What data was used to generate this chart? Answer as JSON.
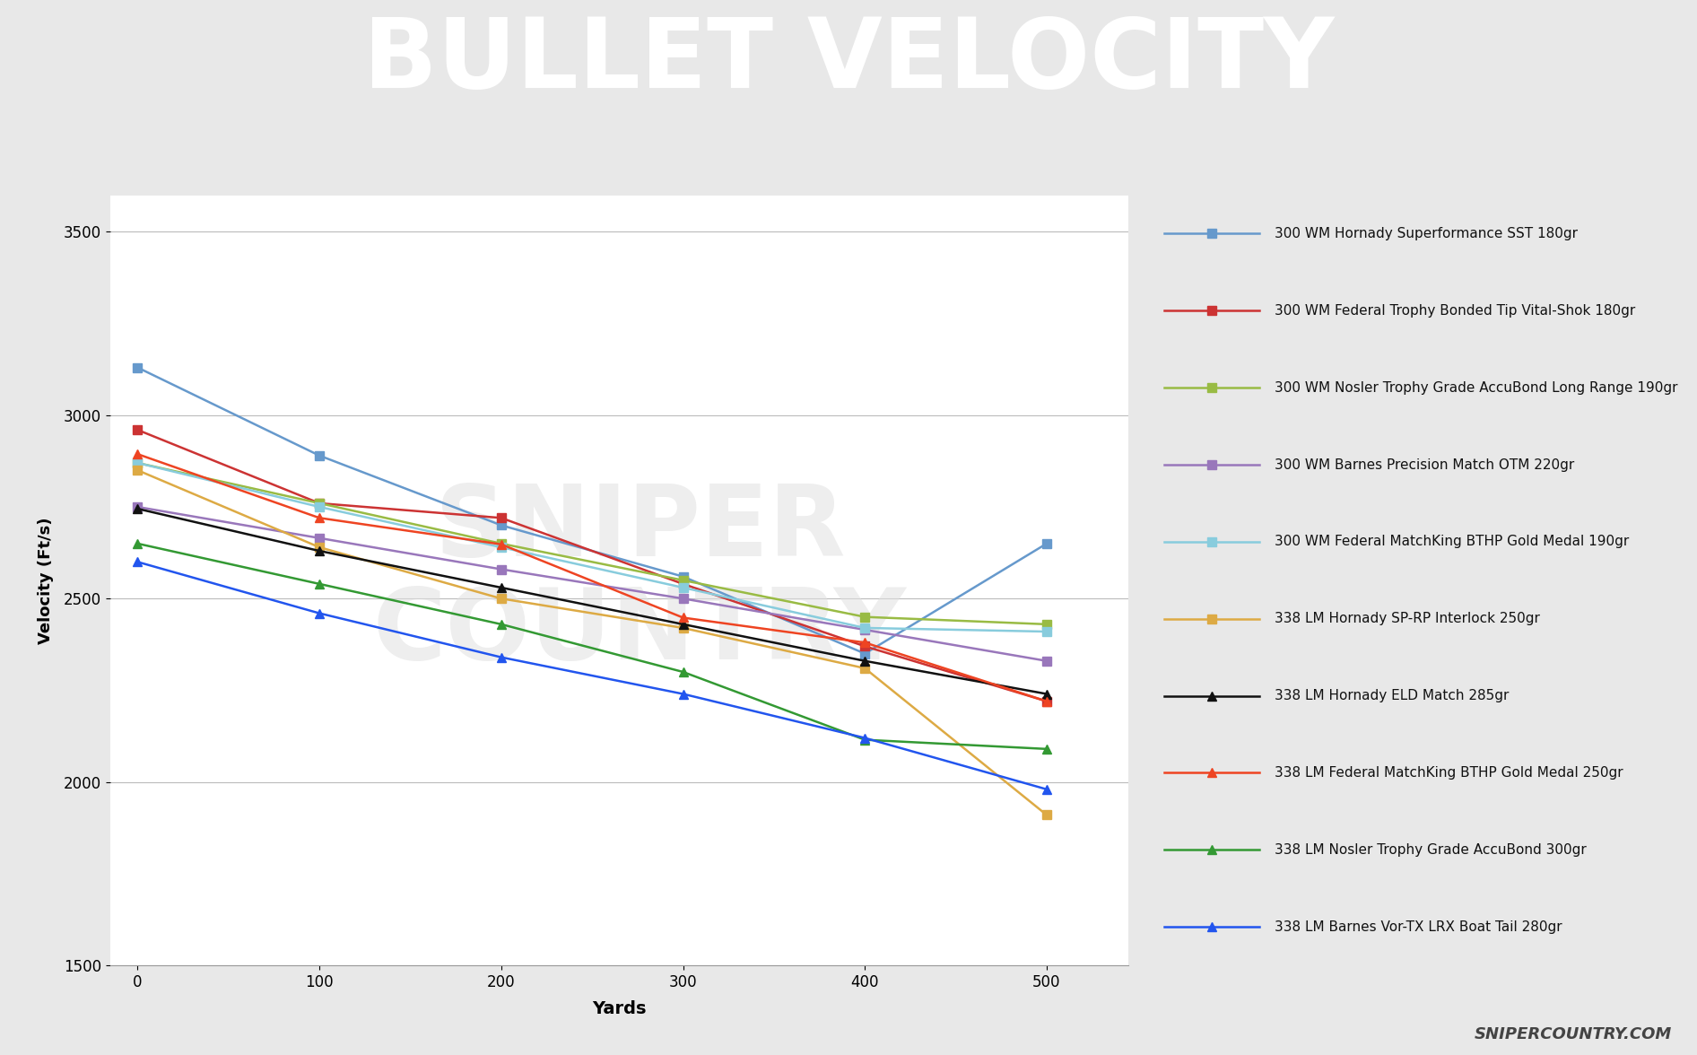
{
  "title": "BULLET VELOCITY",
  "xlabel": "Yards",
  "ylabel": "Velocity (Ft/s)",
  "x": [
    0,
    100,
    200,
    300,
    400,
    500
  ],
  "ylim": [
    1500,
    3600
  ],
  "yticks": [
    1500,
    2000,
    2500,
    3000,
    3500
  ],
  "series": [
    {
      "label": "300 WM Hornady Superformance SST 180gr",
      "color": "#6699CC",
      "marker": "s",
      "values": [
        3130,
        2890,
        2700,
        2560,
        2350,
        2650
      ]
    },
    {
      "label": "300 WM Federal Trophy Bonded Tip Vital-Shok 180gr",
      "color": "#CC3333",
      "marker": "s",
      "values": [
        2960,
        2760,
        2720,
        2540,
        2370,
        2220
      ]
    },
    {
      "label": "300 WM Nosler Trophy Grade AccuBond Long Range 190gr",
      "color": "#99BB44",
      "marker": "s",
      "values": [
        2870,
        2760,
        2650,
        2550,
        2450,
        2430
      ]
    },
    {
      "label": "300 WM Barnes Precision Match OTM 220gr",
      "color": "#9977BB",
      "marker": "s",
      "values": [
        2750,
        2665,
        2580,
        2500,
        2415,
        2330
      ]
    },
    {
      "label": "300 WM Federal MatchKing BTHP Gold Medal 190gr",
      "color": "#88CCDD",
      "marker": "s",
      "values": [
        2870,
        2750,
        2640,
        2530,
        2420,
        2410
      ]
    },
    {
      "label": "338 LM Hornady SP-RP Interlock 250gr",
      "color": "#DDAA44",
      "marker": "s",
      "values": [
        2850,
        2640,
        2500,
        2420,
        2310,
        1910
      ]
    },
    {
      "label": "338 LM Hornady ELD Match 285gr",
      "color": "#111111",
      "marker": "^",
      "values": [
        2745,
        2630,
        2530,
        2430,
        2330,
        2240
      ]
    },
    {
      "label": "338 LM Federal MatchKing BTHP Gold Medal 250gr",
      "color": "#EE4422",
      "marker": "^",
      "values": [
        2894,
        2720,
        2648,
        2448,
        2380,
        2220
      ]
    },
    {
      "label": "338 LM Nosler Trophy Grade AccuBond 300gr",
      "color": "#339933",
      "marker": "^",
      "values": [
        2650,
        2540,
        2430,
        2300,
        2115,
        2090
      ]
    },
    {
      "label": "338 LM Barnes Vor-TX LRX Boat Tail 280gr",
      "color": "#2255EE",
      "marker": "^",
      "values": [
        2600,
        2460,
        2340,
        2240,
        2120,
        1980
      ]
    }
  ],
  "title_bg_color": "#696969",
  "title_text_color": "#ffffff",
  "red_bar_color": "#E06060",
  "plot_bg_color": "#ffffff",
  "outer_bg_color": "#e8e8e8",
  "grid_color": "#bbbbbb",
  "footer_text": "SNIPERCOUNTRY.COM",
  "footer_color": "#444444"
}
